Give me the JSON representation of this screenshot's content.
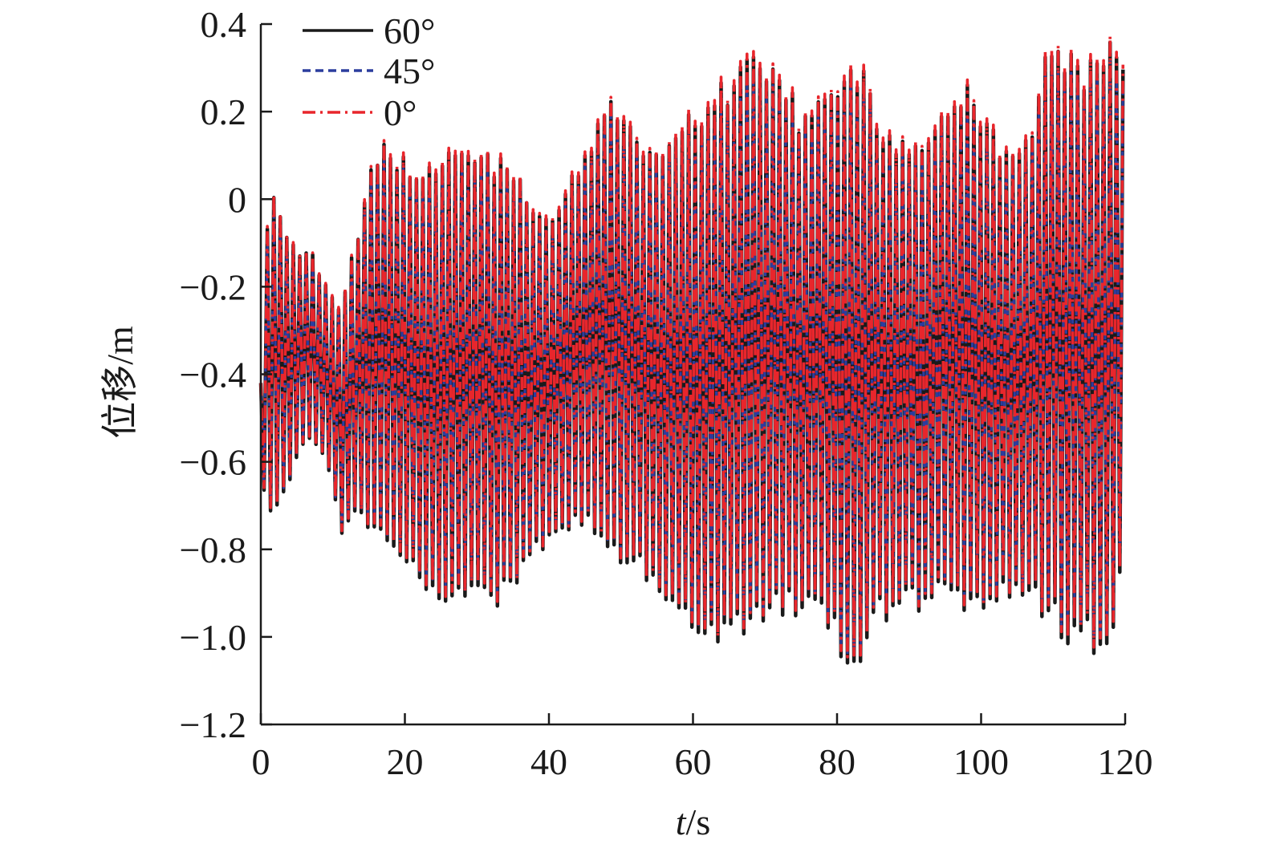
{
  "chart_data": {
    "type": "line",
    "title": "",
    "xlabel_italic": "t",
    "xlabel_rest": "/s",
    "ylabel": "位移/m",
    "xlim": [
      0,
      120
    ],
    "ylim": [
      -1.2,
      0.4
    ],
    "xticks": [
      0,
      20,
      40,
      60,
      80,
      100,
      120
    ],
    "xtick_labels": [
      "0",
      "20",
      "40",
      "60",
      "80",
      "100",
      "120"
    ],
    "yticks": [
      0.4,
      0.2,
      0,
      -0.2,
      -0.4,
      -0.6,
      -0.8,
      -1.0,
      -1.2
    ],
    "ytick_labels": [
      "0.4",
      "0.2",
      "0",
      "−0.2",
      "−0.4",
      "−0.6",
      "−0.8",
      "−1.0",
      "−1.2"
    ],
    "grid": false,
    "legend_position": "top-left",
    "series": [
      {
        "name": "60°",
        "color": "#1a1a1a",
        "dash": "solid",
        "peak_scale": 1.0,
        "trough_scale": 1.0
      },
      {
        "name": "45°",
        "color": "#2b3d9e",
        "dash": "dashed",
        "peak_scale": 0.94,
        "trough_scale": 0.97
      },
      {
        "name": "0°",
        "color": "#e8262c",
        "dash": "dash-dot",
        "peak_scale": 1.02,
        "trough_scale": 0.98
      }
    ],
    "oscillation_period_s": 0.9,
    "envelope_max": [
      [
        0,
        -0.2
      ],
      [
        1.3,
        0.05
      ],
      [
        3,
        -0.05
      ],
      [
        5,
        -0.12
      ],
      [
        7,
        -0.12
      ],
      [
        9.5,
        -0.2
      ],
      [
        11,
        -0.25
      ],
      [
        13,
        -0.1
      ],
      [
        15,
        0.08
      ],
      [
        17,
        0.13
      ],
      [
        20,
        0.1
      ],
      [
        25,
        0.1
      ],
      [
        28,
        0.13
      ],
      [
        33,
        0.11
      ],
      [
        36,
        0.05
      ],
      [
        40,
        -0.02
      ],
      [
        45,
        0.1
      ],
      [
        48,
        0.27
      ],
      [
        52,
        0.18
      ],
      [
        55,
        0.12
      ],
      [
        58,
        0.2
      ],
      [
        63,
        0.25
      ],
      [
        67,
        0.33
      ],
      [
        72,
        0.32
      ],
      [
        75,
        0.2
      ],
      [
        80,
        0.28
      ],
      [
        83,
        0.34
      ],
      [
        86,
        0.18
      ],
      [
        90,
        0.13
      ],
      [
        95,
        0.2
      ],
      [
        98,
        0.27
      ],
      [
        102,
        0.16
      ],
      [
        106,
        0.12
      ],
      [
        109,
        0.34
      ],
      [
        112,
        0.36
      ],
      [
        115,
        0.32
      ],
      [
        117,
        0.39
      ],
      [
        120,
        0.35
      ]
    ],
    "envelope_min": [
      [
        0,
        -0.6
      ],
      [
        1,
        -0.75
      ],
      [
        3,
        -0.7
      ],
      [
        5,
        -0.6
      ],
      [
        7,
        -0.55
      ],
      [
        9,
        -0.6
      ],
      [
        11,
        -0.77
      ],
      [
        13,
        -0.72
      ],
      [
        15,
        -0.77
      ],
      [
        18,
        -0.8
      ],
      [
        22,
        -0.88
      ],
      [
        25,
        -0.92
      ],
      [
        28,
        -0.94
      ],
      [
        33,
        -0.94
      ],
      [
        37,
        -0.85
      ],
      [
        40,
        -0.8
      ],
      [
        45,
        -0.75
      ],
      [
        50,
        -0.85
      ],
      [
        55,
        -0.9
      ],
      [
        58,
        -0.97
      ],
      [
        62,
        -1.04
      ],
      [
        66,
        -1.0
      ],
      [
        71,
        -0.97
      ],
      [
        75,
        -0.95
      ],
      [
        79,
        -1.0
      ],
      [
        82,
        -1.1
      ],
      [
        86,
        -0.98
      ],
      [
        90,
        -0.95
      ],
      [
        95,
        -0.93
      ],
      [
        100,
        -0.95
      ],
      [
        105,
        -0.92
      ],
      [
        108,
        -0.95
      ],
      [
        112,
        -1.02
      ],
      [
        115,
        -1.04
      ],
      [
        118,
        -1.05
      ],
      [
        120,
        -0.85
      ]
    ]
  }
}
